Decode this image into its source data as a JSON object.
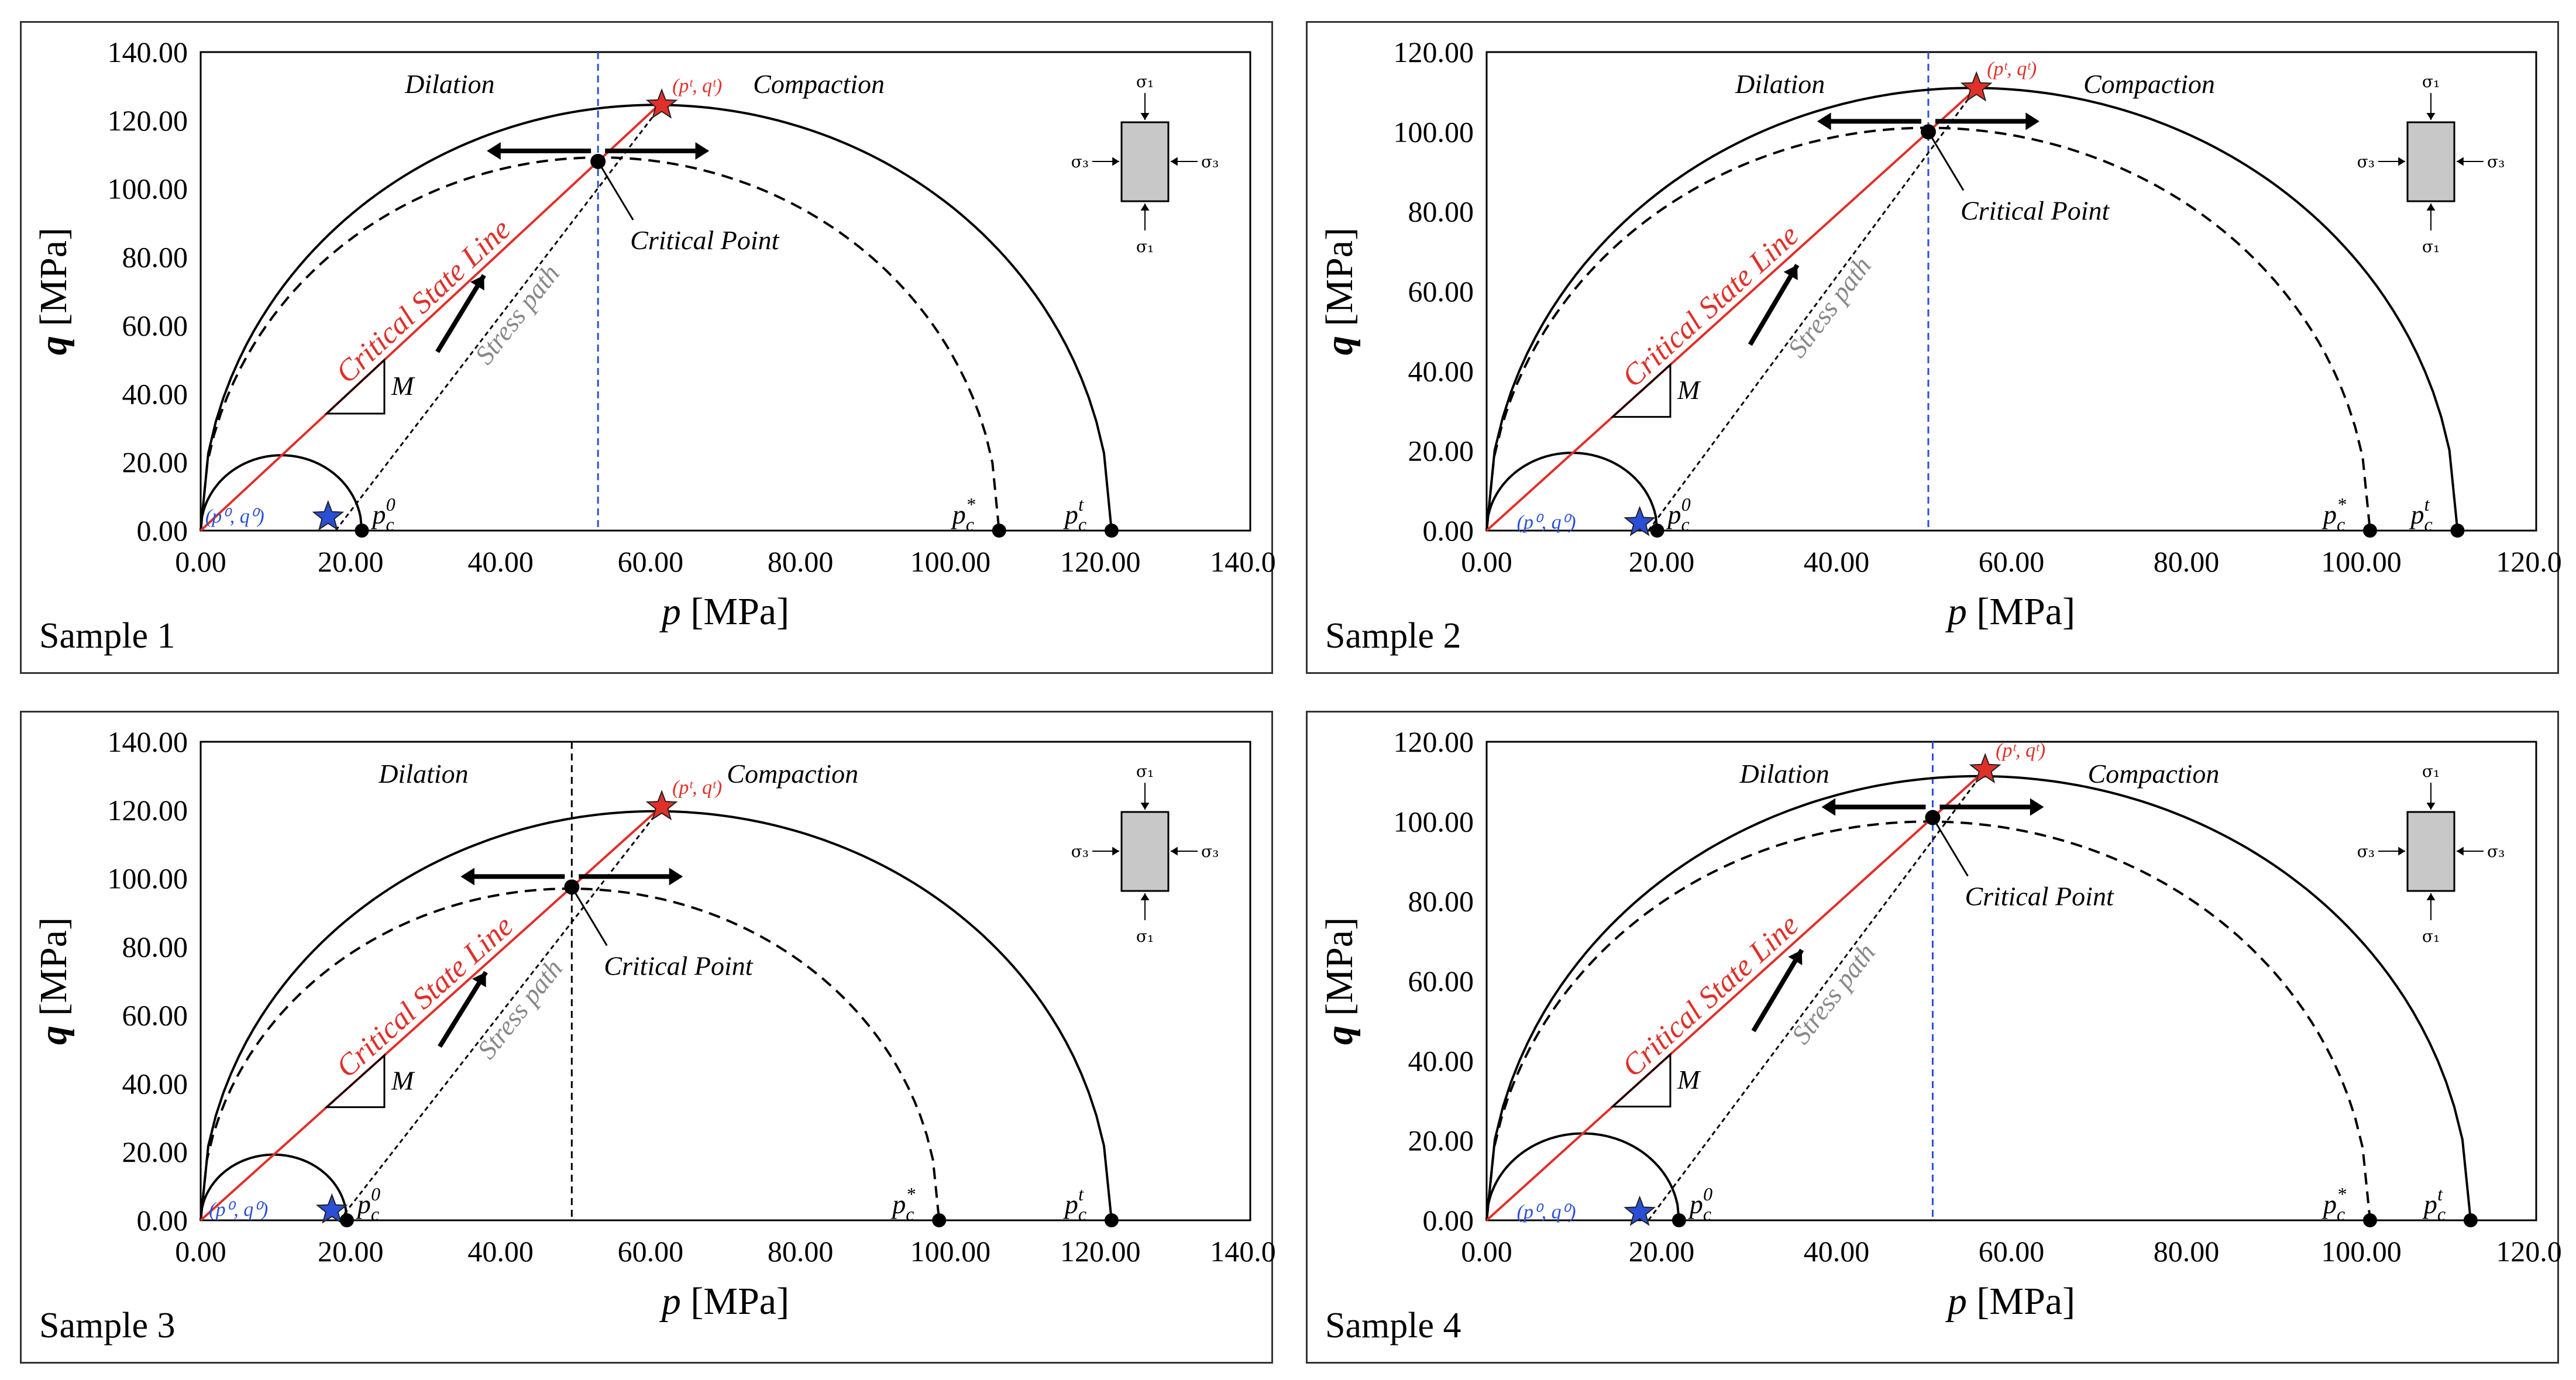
{
  "chart_data": [
    {
      "type": "line",
      "sample_label": "Sample 1",
      "xlabel_symbol": "p",
      "xlabel_unit": "[MPa]",
      "ylabel_symbol": "q",
      "ylabel_unit": "[MPa]",
      "xlim": [
        0,
        140
      ],
      "ylim": [
        0,
        140
      ],
      "x_ticks": [
        "0.00",
        "20.00",
        "40.00",
        "60.00",
        "80.00",
        "100.00",
        "120.00",
        "140.00"
      ],
      "y_ticks": [
        "0.00",
        "20.00",
        "40.00",
        "60.00",
        "80.00",
        "100.00",
        "120.00",
        "140.00"
      ],
      "M": 2.05,
      "initial_point": {
        "p": 17,
        "q": 4,
        "label": "(p⁰, q⁰)"
      },
      "pc0": 21.5,
      "pc_star": 106.5,
      "pct": 121.5,
      "critical_point": {
        "p": 53,
        "q": 108,
        "label": "Critical Point"
      },
      "final_point": {
        "p": 61.5,
        "q": 124.5,
        "label": "(pᵗ, qᵗ)"
      },
      "divider_color": "#2a4fd6",
      "labels": {
        "dilation": "Dilation",
        "compaction": "Compaction",
        "csl": "Critical State Line",
        "stress_path": "Stress path",
        "slope": "M",
        "pc0": "p_c^0",
        "pc_star": "p_c^*",
        "pct": "p_c^t"
      }
    },
    {
      "type": "line",
      "sample_label": "Sample 2",
      "xlabel_symbol": "p",
      "xlabel_unit": "[MPa]",
      "ylabel_symbol": "q",
      "ylabel_unit": "[MPa]",
      "xlim": [
        0,
        120
      ],
      "ylim": [
        0,
        120
      ],
      "x_ticks": [
        "0.00",
        "20.00",
        "40.00",
        "60.00",
        "80.00",
        "100.00",
        "120.00"
      ],
      "y_ticks": [
        "0.00",
        "20.00",
        "40.00",
        "60.00",
        "80.00",
        "100.00",
        "120.00"
      ],
      "M": 2.0,
      "initial_point": {
        "p": 17.5,
        "q": 2,
        "label": "(p⁰, q⁰)"
      },
      "pc0": 19.5,
      "pc_star": 101,
      "pct": 111,
      "critical_point": {
        "p": 50.5,
        "q": 100,
        "label": "Critical Point"
      },
      "final_point": {
        "p": 56,
        "q": 111,
        "label": "(pᵗ, qᵗ)"
      },
      "divider_color": "#2a4fd6",
      "labels": {
        "dilation": "Dilation",
        "compaction": "Compaction",
        "csl": "Critical State Line",
        "stress_path": "Stress path",
        "slope": "M",
        "pc0": "p_c^0",
        "pc_star": "p_c^*",
        "pct": "p_c^t"
      }
    },
    {
      "type": "line",
      "sample_label": "Sample 3",
      "xlabel_symbol": "p",
      "xlabel_unit": "[MPa]",
      "ylabel_symbol": "q",
      "ylabel_unit": "[MPa]",
      "xlim": [
        0,
        140
      ],
      "ylim": [
        0,
        140
      ],
      "x_ticks": [
        "0.00",
        "20.00",
        "40.00",
        "60.00",
        "80.00",
        "100.00",
        "120.00",
        "140.00"
      ],
      "y_ticks": [
        "0.00",
        "20.00",
        "40.00",
        "60.00",
        "80.00",
        "100.00",
        "120.00",
        "140.00"
      ],
      "M": 1.97,
      "initial_point": {
        "p": 17.5,
        "q": 3,
        "label": "(p⁰, q⁰)"
      },
      "pc0": 19.5,
      "pc_star": 98.5,
      "pct": 121.5,
      "critical_point": {
        "p": 49.5,
        "q": 97.5,
        "label": "Critical Point"
      },
      "final_point": {
        "p": 61.5,
        "q": 121,
        "label": "(pᵗ, qᵗ)"
      },
      "divider_color": "#000000",
      "labels": {
        "dilation": "Dilation",
        "compaction": "Compaction",
        "csl": "Critical State Line",
        "stress_path": "Stress path",
        "slope": "M",
        "pc0": "p_c^0",
        "pc_star": "p_c^*",
        "pct": "p_c^t"
      }
    },
    {
      "type": "line",
      "sample_label": "Sample 4",
      "xlabel_symbol": "p",
      "xlabel_unit": "[MPa]",
      "ylabel_symbol": "q",
      "ylabel_unit": "[MPa]",
      "xlim": [
        0,
        120
      ],
      "ylim": [
        0,
        120
      ],
      "x_ticks": [
        "0.00",
        "20.00",
        "40.00",
        "60.00",
        "80.00",
        "100.00",
        "120.00"
      ],
      "y_ticks": [
        "0.00",
        "20.00",
        "40.00",
        "60.00",
        "80.00",
        "100.00",
        "120.00"
      ],
      "M": 1.98,
      "initial_point": {
        "p": 17.5,
        "q": 2,
        "label": "(p⁰, q⁰)"
      },
      "pc0": 22,
      "pc_star": 101,
      "pct": 112.5,
      "critical_point": {
        "p": 51,
        "q": 101,
        "label": "Critical Point"
      },
      "final_point": {
        "p": 57,
        "q": 113,
        "label": "(pᵗ, qᵗ)"
      },
      "divider_color": "#2a4fd6",
      "labels": {
        "dilation": "Dilation",
        "compaction": "Compaction",
        "csl": "Critical State Line",
        "stress_path": "Stress path",
        "slope": "M",
        "pc0": "p_c^0",
        "pc_star": "p_c^*",
        "pct": "p_c^t"
      }
    }
  ],
  "legend": {
    "sigma1": "σ₁",
    "sigma3": "σ₃"
  },
  "colors": {
    "csl": "#e0302a",
    "initial_star": "#2a4fd6",
    "final_star": "#e0302a"
  }
}
